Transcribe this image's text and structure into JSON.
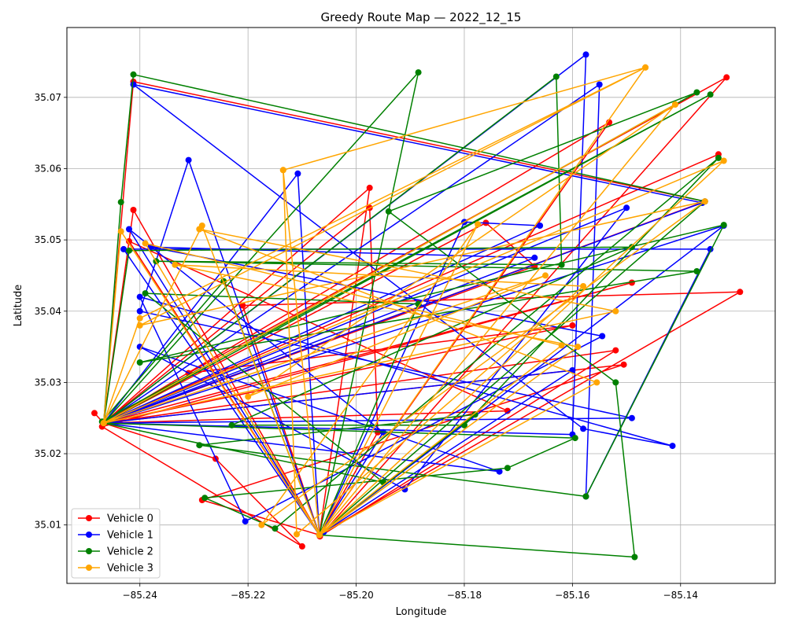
{
  "chart_data": {
    "type": "line",
    "title": "Greedy Route Map — 2022_12_15",
    "xlabel": "Longitude",
    "ylabel": "Latitude",
    "xlim": [
      -85.2535,
      -85.1225
    ],
    "ylim": [
      35.0018,
      35.0798
    ],
    "x_ticks": [
      -85.24,
      -85.22,
      -85.2,
      -85.18,
      -85.16,
      -85.14
    ],
    "x_tick_labels": [
      "−85.24",
      "−85.22",
      "−85.20",
      "−85.18",
      "−85.16",
      "−85.14"
    ],
    "y_ticks": [
      35.01,
      35.02,
      35.03,
      35.04,
      35.05,
      35.06,
      35.07
    ],
    "y_tick_labels": [
      "35.01",
      "35.02",
      "35.03",
      "35.04",
      "35.05",
      "35.06",
      "35.07"
    ],
    "grid": true,
    "legend_position": "lower-left",
    "series": [
      {
        "name": "Vehicle 0",
        "color": "#ff0000",
        "points": [
          [
            -85.2467,
            35.0243
          ],
          [
            -85.133,
            35.062
          ],
          [
            -85.2467,
            35.0243
          ],
          [
            -85.2484,
            35.0257
          ],
          [
            -85.2467,
            35.0243
          ],
          [
            -85.2412,
            35.0722
          ],
          [
            -85.1355,
            35.0554
          ],
          [
            -85.2467,
            35.0243
          ],
          [
            -85.2412,
            35.0542
          ],
          [
            -85.2068,
            35.0086
          ],
          [
            -85.1532,
            35.0665
          ],
          [
            -85.2467,
            35.0243
          ],
          [
            -85.1975,
            35.0573
          ],
          [
            -85.2068,
            35.0086
          ],
          [
            -85.129,
            35.0427
          ],
          [
            -85.221,
            35.0408
          ],
          [
            -85.2068,
            35.0086
          ],
          [
            -85.196,
            35.023
          ],
          [
            -85.1975,
            35.0545
          ],
          [
            -85.2467,
            35.0243
          ],
          [
            -85.176,
            35.0524
          ],
          [
            -85.167,
            35.0463
          ],
          [
            -85.2467,
            35.0243
          ],
          [
            -85.172,
            35.026
          ],
          [
            -85.242,
            35.0498
          ],
          [
            -85.2068,
            35.0086
          ],
          [
            -85.2285,
            35.0135
          ],
          [
            -85.1505,
            35.0325
          ],
          [
            -85.2467,
            35.0243
          ],
          [
            -85.16,
            35.038
          ],
          [
            -85.231,
            35.0313
          ],
          [
            -85.1315,
            35.0728
          ],
          [
            -85.2067,
            35.0084
          ],
          [
            -85.152,
            35.0345
          ],
          [
            -85.2467,
            35.0243
          ],
          [
            -85.226,
            35.0193
          ],
          [
            -85.21,
            35.007
          ],
          [
            -85.247,
            35.0238
          ],
          [
            -85.149,
            35.044
          ],
          [
            -85.2467,
            35.0243
          ]
        ]
      },
      {
        "name": "Vehicle 1",
        "color": "#0000ff",
        "points": [
          [
            -85.2467,
            35.0243
          ],
          [
            -85.1575,
            35.076
          ],
          [
            -85.16,
            35.0227
          ],
          [
            -85.2467,
            35.0243
          ],
          [
            -85.155,
            35.0718
          ],
          [
            -85.1575,
            35.014
          ],
          [
            -85.1345,
            35.0487
          ],
          [
            -85.243,
            35.0487
          ],
          [
            -85.2068,
            35.0086
          ],
          [
            -85.231,
            35.0612
          ],
          [
            -85.24,
            35.04
          ],
          [
            -85.149,
            35.025
          ],
          [
            -85.2467,
            35.0243
          ],
          [
            -85.2108,
            35.0593
          ],
          [
            -85.2068,
            35.0086
          ],
          [
            -85.195,
            35.023
          ],
          [
            -85.242,
            35.0515
          ],
          [
            -85.2068,
            35.0086
          ],
          [
            -85.18,
            35.0525
          ],
          [
            -85.166,
            35.052
          ],
          [
            -85.2467,
            35.0243
          ],
          [
            -85.167,
            35.0475
          ],
          [
            -85.238,
            35.049
          ],
          [
            -85.1545,
            35.0365
          ],
          [
            -85.2205,
            35.0105
          ],
          [
            -85.24,
            35.042
          ],
          [
            -85.1415,
            35.0211
          ],
          [
            -85.158,
            35.0235
          ],
          [
            -85.2412,
            35.0718
          ],
          [
            -85.136,
            35.0552
          ],
          [
            -85.2467,
            35.0243
          ],
          [
            -85.1735,
            35.0175
          ],
          [
            -85.24,
            35.035
          ],
          [
            -85.191,
            35.015
          ],
          [
            -85.15,
            35.0545
          ],
          [
            -85.2467,
            35.0243
          ],
          [
            -85.16,
            35.0317
          ],
          [
            -85.206,
            35.009
          ],
          [
            -85.132,
            35.052
          ],
          [
            -85.2467,
            35.0243
          ]
        ]
      },
      {
        "name": "Vehicle 2",
        "color": "#008000",
        "points": [
          [
            -85.2467,
            35.0243
          ],
          [
            -85.2435,
            35.0553
          ],
          [
            -85.2412,
            35.0732
          ],
          [
            -85.1355,
            35.0554
          ],
          [
            -85.2068,
            35.0086
          ],
          [
            -85.1885,
            35.0735
          ],
          [
            -85.2467,
            35.0243
          ],
          [
            -85.163,
            35.0729
          ],
          [
            -85.162,
            35.0465
          ],
          [
            -85.237,
            35.047
          ],
          [
            -85.137,
            35.0456
          ],
          [
            -85.24,
            35.0328
          ],
          [
            -85.132,
            35.0521
          ],
          [
            -85.1575,
            35.014
          ],
          [
            -85.229,
            35.0212
          ],
          [
            -85.178,
            35.0255
          ],
          [
            -85.2068,
            35.0086
          ],
          [
            -85.1485,
            35.0055
          ],
          [
            -85.152,
            35.03
          ],
          [
            -85.194,
            35.054
          ],
          [
            -85.137,
            35.0707
          ],
          [
            -85.2467,
            35.0243
          ],
          [
            -85.1345,
            35.0704
          ],
          [
            -85.247,
            35.0245
          ],
          [
            -85.2245,
            35.0442
          ],
          [
            -85.2068,
            35.0086
          ],
          [
            -85.1885,
            35.041
          ],
          [
            -85.239,
            35.0425
          ],
          [
            -85.195,
            35.016
          ],
          [
            -85.2467,
            35.0243
          ],
          [
            -85.1595,
            35.0222
          ],
          [
            -85.172,
            35.018
          ],
          [
            -85.228,
            35.0138
          ],
          [
            -85.215,
            35.0095
          ],
          [
            -85.133,
            35.0615
          ],
          [
            -85.18,
            35.024
          ],
          [
            -85.223,
            35.024
          ],
          [
            -85.149,
            35.049
          ],
          [
            -85.242,
            35.0485
          ],
          [
            -85.2467,
            35.0243
          ]
        ]
      },
      {
        "name": "Vehicle 3",
        "color": "#ffa500",
        "points": [
          [
            -85.2467,
            35.0243
          ],
          [
            -85.24,
            35.039
          ],
          [
            -85.1465,
            35.0742
          ],
          [
            -85.2135,
            35.0598
          ],
          [
            -85.2068,
            35.0086
          ],
          [
            -85.132,
            35.0611
          ],
          [
            -85.2467,
            35.0243
          ],
          [
            -85.2435,
            35.0512
          ],
          [
            -85.2068,
            35.0086
          ],
          [
            -85.141,
            35.069
          ],
          [
            -85.2467,
            35.0243
          ],
          [
            -85.2285,
            35.052
          ],
          [
            -85.2068,
            35.0086
          ],
          [
            -85.1465,
            35.0742
          ],
          [
            -85.24,
            35.038
          ],
          [
            -85.1355,
            35.0554
          ],
          [
            -85.2175,
            35.01
          ],
          [
            -85.1775,
            35.0522
          ],
          [
            -85.2068,
            35.0086
          ],
          [
            -85.162,
            35.0352
          ],
          [
            -85.239,
            35.0495
          ],
          [
            -85.2068,
            35.0086
          ],
          [
            -85.159,
            35.035
          ],
          [
            -85.2335,
            35.0465
          ],
          [
            -85.158,
            35.0435
          ],
          [
            -85.211,
            35.0087
          ],
          [
            -85.2135,
            35.0598
          ],
          [
            -85.2068,
            35.0086
          ],
          [
            -85.1555,
            35.03
          ],
          [
            -85.229,
            35.0515
          ],
          [
            -85.152,
            35.04
          ],
          [
            -85.2467,
            35.0243
          ],
          [
            -85.165,
            35.045
          ],
          [
            -85.22,
            35.028
          ],
          [
            -85.141,
            35.069
          ],
          [
            -85.2467,
            35.0243
          ]
        ]
      }
    ]
  }
}
